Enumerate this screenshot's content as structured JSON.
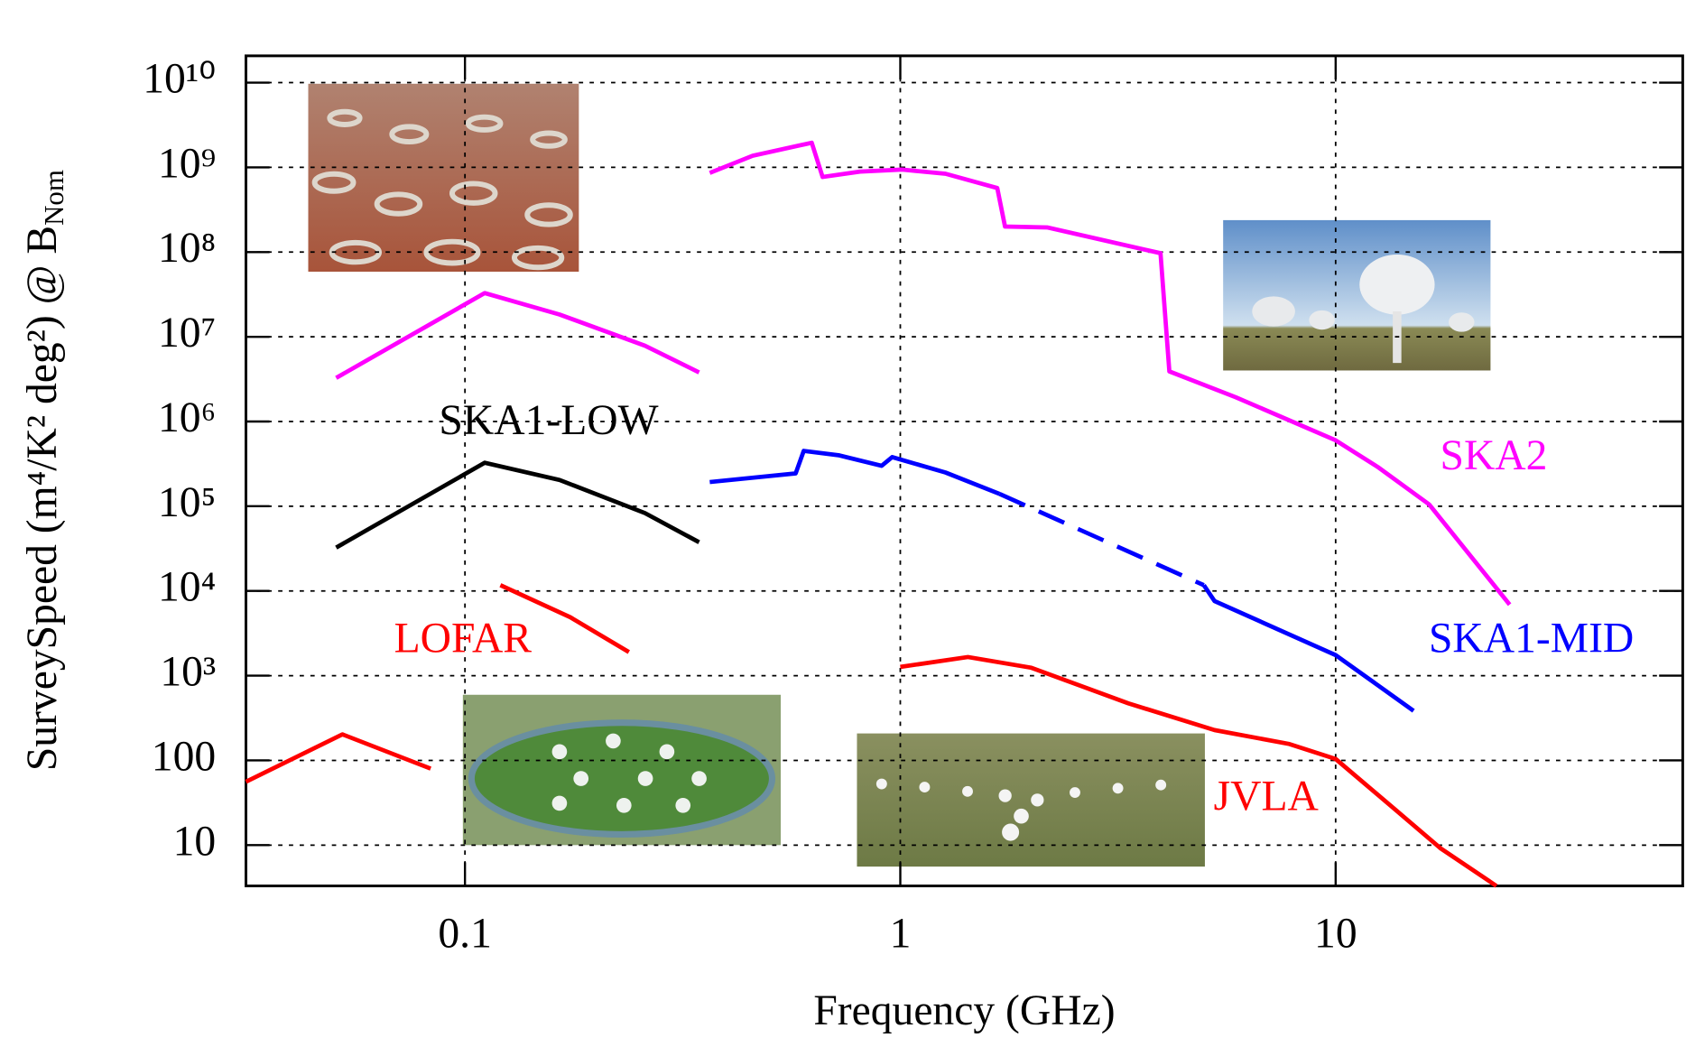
{
  "chart_data": {
    "type": "line",
    "x_label": "Frequency (GHz)",
    "y_label": "SurveySpeed (m⁴/K² deg²) @ B",
    "y_label_subscript": "Nom",
    "log_x": true,
    "log_y": true,
    "grid": true,
    "xlim": [
      0.0314,
      62.7
    ],
    "ylim": [
      3.3,
      20700000000.0
    ],
    "xticks": [
      0.1,
      1,
      10
    ],
    "yticks": [
      10,
      100,
      {
        "value": 1000,
        "label": "10³"
      },
      {
        "value": 10000,
        "label": "10⁴"
      },
      {
        "value": 100000,
        "label": "10⁵"
      },
      {
        "value": 1000000,
        "label": "10⁶"
      },
      {
        "value": 10000000,
        "label": "10⁷"
      },
      {
        "value": 100000000,
        "label": "10⁸"
      },
      {
        "value": 1000000000,
        "label": "10⁹"
      },
      {
        "value": 10000000000,
        "label": "10¹⁰"
      }
    ],
    "series": [
      {
        "name": "SKA2",
        "color": "#ff00ff",
        "x": [
          0.0506,
          0.111,
          0.165,
          0.259,
          0.345,
          null,
          0.365,
          0.458,
          0.626,
          0.663,
          0.808,
          1.01,
          1.27,
          1.67,
          1.74,
          2.18,
          3.96,
          4.15,
          5.9,
          10,
          12.5,
          16.4,
          25.1
        ],
        "values": [
          3270000,
          32800000,
          18300000,
          7850000,
          3800000,
          null,
          860000000,
          1370000000,
          1950000000,
          770000000,
          890000000,
          940000000,
          840000000,
          570000000,
          200000000,
          195000000,
          97000000,
          3900000,
          1930000,
          600000,
          290000,
          105000,
          6900
        ]
      },
      {
        "name": "SKA1-LOW",
        "color": "#000000",
        "x": [
          0.0506,
          0.111,
          0.165,
          0.259,
          0.345
        ],
        "values": [
          32500,
          326000,
          204000,
          83000,
          37600
        ]
      },
      {
        "name": "SKA1-MID",
        "color": "#0000ff",
        "dashed_segments": [
          7
        ],
        "x": [
          0.365,
          0.575,
          0.6,
          0.721,
          0.906,
          0.958,
          1.27,
          1.69,
          4.98,
          5.27,
          10,
          15.1
        ],
        "values": [
          193000,
          244000,
          450000,
          400000,
          300000,
          380000,
          250000,
          140000,
          11700,
          7600,
          1750,
          385
        ]
      },
      {
        "name": "LOFAR",
        "color": "#ff0000",
        "x": [
          0.0314,
          0.0523,
          0.0834,
          null,
          0.1206,
          0.1745,
          0.238
        ],
        "values": [
          56,
          203,
          80,
          null,
          11700,
          4900,
          1900
        ]
      },
      {
        "name": "JVLA",
        "color": "#ff0000",
        "x": [
          1,
          1.43,
          2.0,
          3.34,
          5.27,
          7.83,
          10,
          13.8,
          17.4,
          23.4
        ],
        "values": [
          1270,
          1660,
          1240,
          472,
          228,
          156,
          104,
          25.5,
          9.2,
          3.3
        ]
      }
    ]
  }
}
